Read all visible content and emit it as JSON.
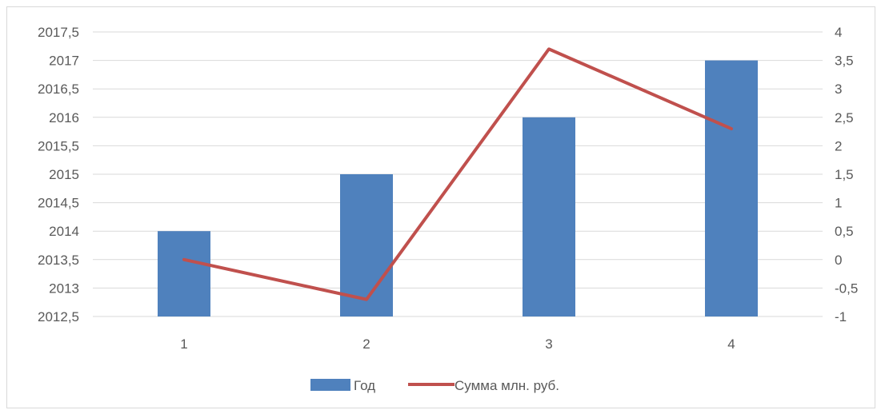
{
  "chart_data": {
    "type": "bar",
    "categories": [
      "1",
      "2",
      "3",
      "4"
    ],
    "series": [
      {
        "name": "Год",
        "type": "bar",
        "axis": "left",
        "color": "#4f81bd",
        "values": [
          2014,
          2015,
          2016,
          2017
        ]
      },
      {
        "name": "Сумма млн. руб.",
        "type": "line",
        "axis": "right",
        "color": "#c0504d",
        "values": [
          0,
          -0.7,
          3.7,
          2.3
        ]
      }
    ],
    "y_left": {
      "range": [
        2012.5,
        2017.5
      ],
      "ticks": [
        "2012,5",
        "2013",
        "2013,5",
        "2014",
        "2014,5",
        "2015",
        "2015,5",
        "2016",
        "2016,5",
        "2017",
        "2017,5"
      ]
    },
    "y_right": {
      "range": [
        -1,
        4
      ],
      "ticks": [
        "-1",
        "-0,5",
        "0",
        "0,5",
        "1",
        "1,5",
        "2",
        "2,5",
        "3",
        "3,5",
        "4"
      ]
    },
    "grid": true,
    "legend_position": "bottom"
  }
}
